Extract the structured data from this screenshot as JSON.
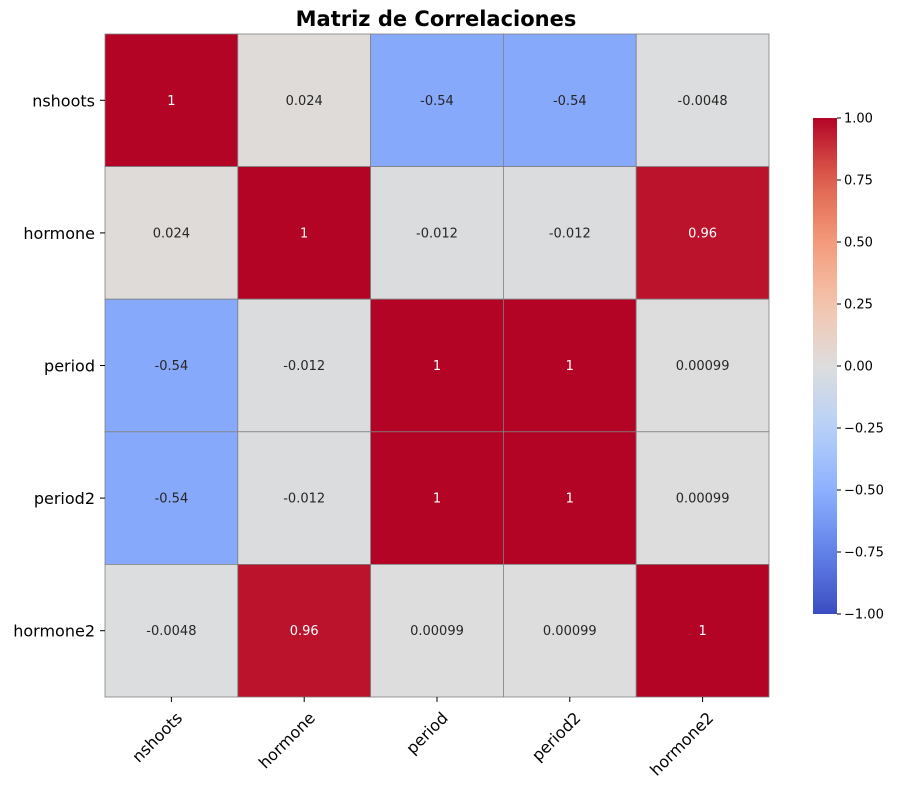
{
  "chart_data": {
    "type": "heatmap",
    "title": "Matriz de Correlaciones",
    "rows": [
      "nshoots",
      "hormone",
      "period",
      "period2",
      "hormone2"
    ],
    "columns": [
      "nshoots",
      "hormone",
      "period",
      "period2",
      "hormone2"
    ],
    "values": [
      [
        1,
        0.024,
        -0.54,
        -0.54,
        -0.0048
      ],
      [
        0.024,
        1,
        -0.012,
        -0.012,
        0.96
      ],
      [
        -0.54,
        -0.012,
        1,
        1,
        0.00099
      ],
      [
        -0.54,
        -0.012,
        1,
        1,
        0.00099
      ],
      [
        -0.0048,
        0.96,
        0.00099,
        0.00099,
        1
      ]
    ],
    "annotations": [
      [
        "1",
        "0.024",
        "-0.54",
        "-0.54",
        "-0.0048"
      ],
      [
        "0.024",
        "1",
        "-0.012",
        "-0.012",
        "0.96"
      ],
      [
        "-0.54",
        "-0.012",
        "1",
        "1",
        "0.00099"
      ],
      [
        "-0.54",
        "-0.012",
        "1",
        "1",
        "0.00099"
      ],
      [
        "-0.0048",
        "0.96",
        "0.00099",
        "0.00099",
        "1"
      ]
    ],
    "colormap": "coolwarm",
    "vmin": -1,
    "vmax": 1,
    "colorbar_ticks": [
      1.0,
      0.75,
      0.5,
      0.25,
      0.0,
      -0.25,
      -0.5,
      -0.75,
      -1.0
    ],
    "colorbar_tick_labels": [
      "1.00",
      "0.75",
      "0.50",
      "0.25",
      "0.00",
      "−0.25",
      "−0.50",
      "−0.75",
      "−1.00"
    ],
    "colorbar_position": "right",
    "x_tick_rotation_deg": 45,
    "grid_line_color": "#808080"
  }
}
